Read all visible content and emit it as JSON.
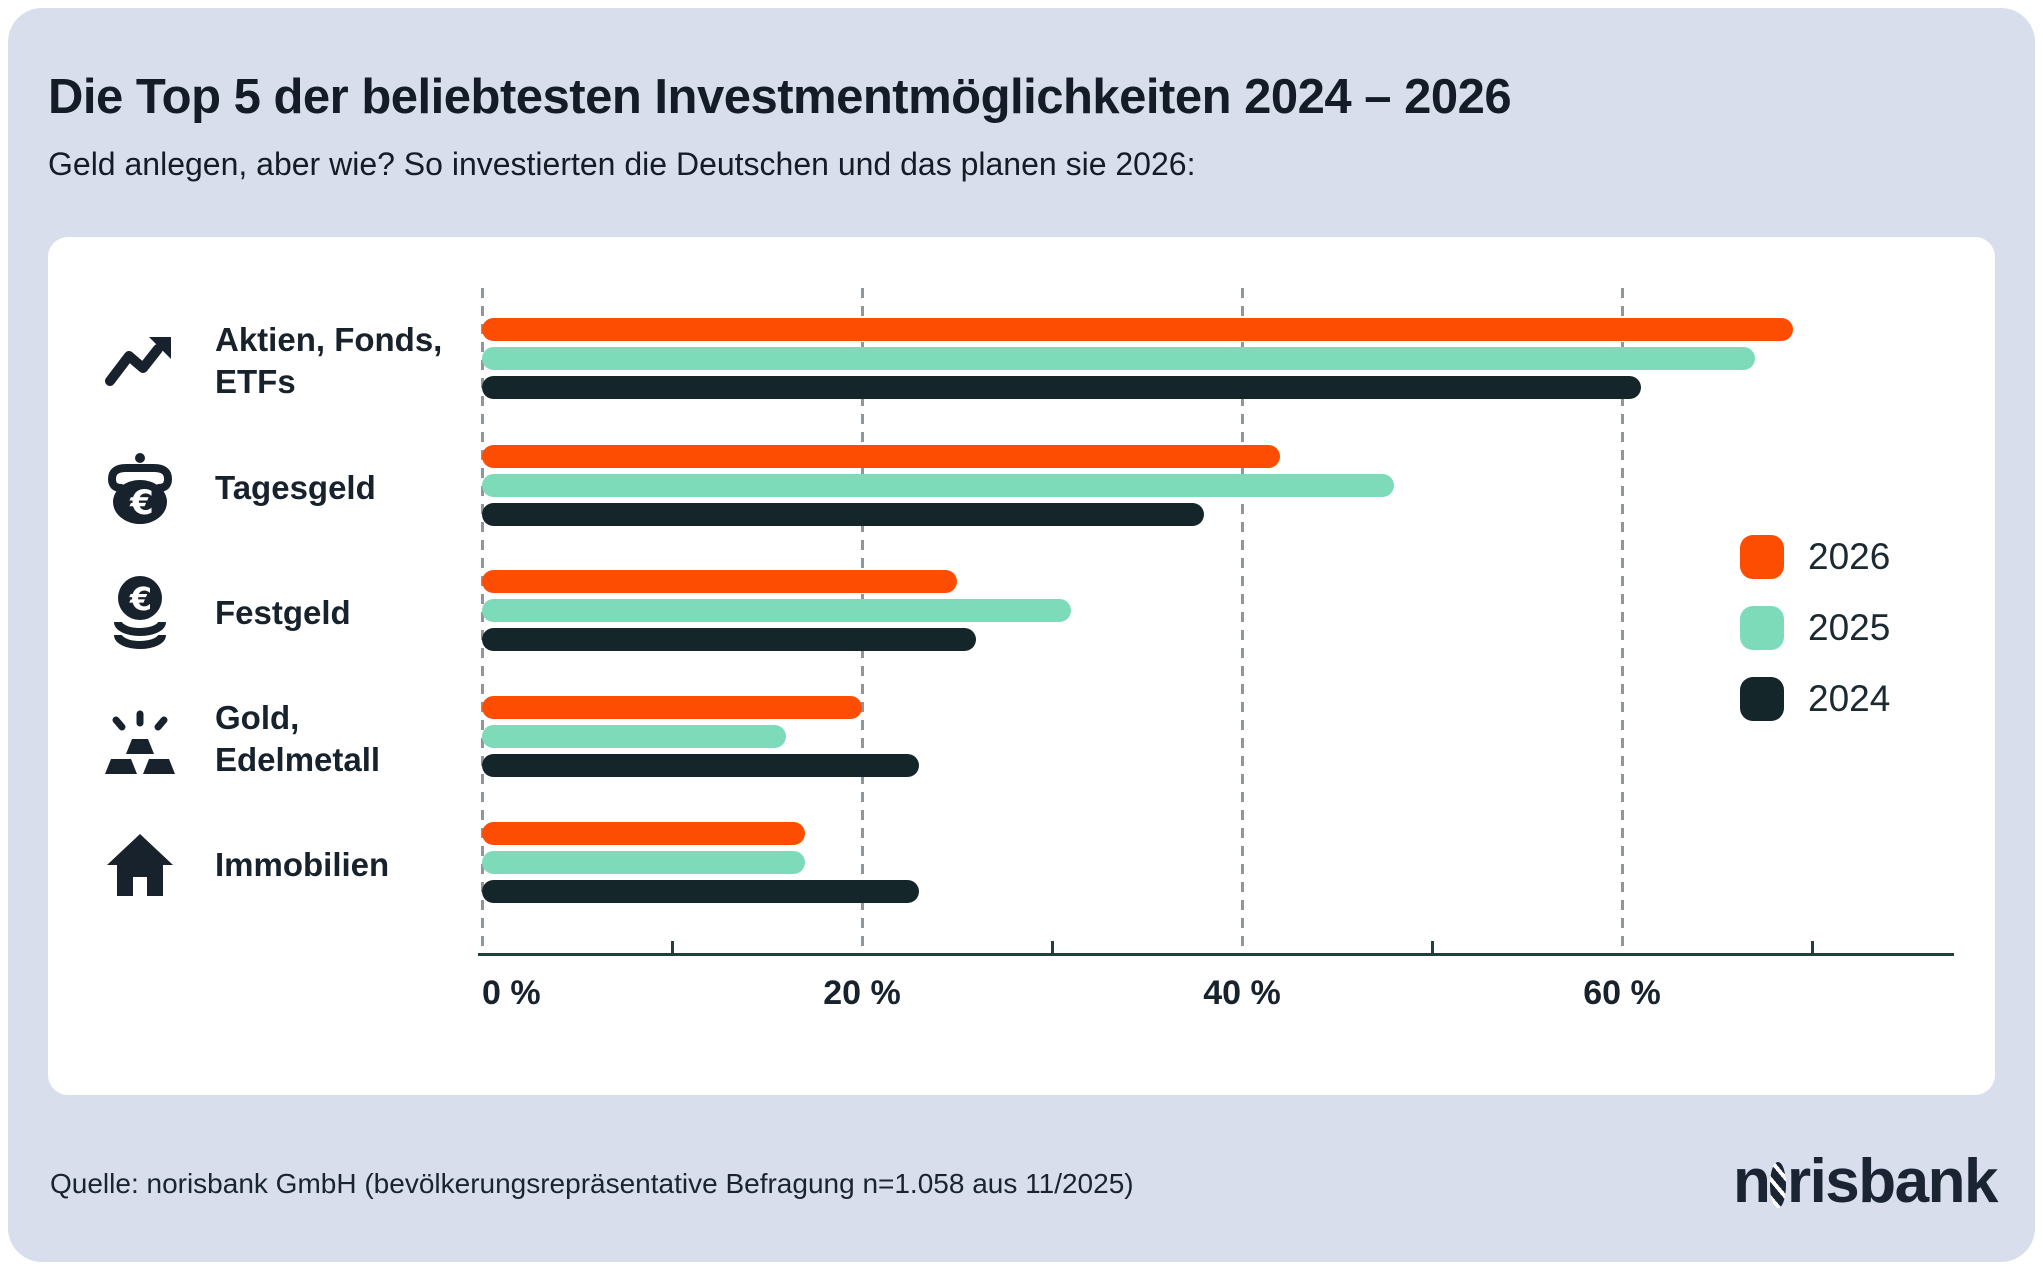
{
  "header": {
    "title": "Die Top 5 der beliebtesten Investmentmöglichkeiten 2024 – 2026",
    "subtitle": "Geld anlegen, aber wie? So investierten die Deutschen und das planen sie 2026:"
  },
  "rows": [
    {
      "icon": "trend-up-icon",
      "label_lines": [
        "Aktien, Fonds,",
        "ETFs"
      ]
    },
    {
      "icon": "purse-euro-icon",
      "label_lines": [
        "Tagesgeld"
      ]
    },
    {
      "icon": "coin-stack-icon",
      "label_lines": [
        "Festgeld"
      ]
    },
    {
      "icon": "gold-bars-icon",
      "label_lines": [
        "Gold,",
        "Edelmetall"
      ]
    },
    {
      "icon": "house-icon",
      "label_lines": [
        "Immobilien"
      ]
    }
  ],
  "chart_data": {
    "type": "bar",
    "orientation": "horizontal",
    "title": "Die Top 5 der beliebtesten Investmentmöglichkeiten 2024 – 2026",
    "categories": [
      "Aktien, Fonds, ETFs",
      "Tagesgeld",
      "Festgeld",
      "Gold, Edelmetall",
      "Immobilien"
    ],
    "series": [
      {
        "name": "2026",
        "color": "#FC4D03",
        "values": [
          69,
          42,
          25,
          20,
          17
        ]
      },
      {
        "name": "2025",
        "color": "#7EDBBA",
        "values": [
          67,
          48,
          31,
          16,
          17
        ]
      },
      {
        "name": "2024",
        "color": "#15262B",
        "values": [
          61,
          38,
          26,
          23,
          23
        ]
      }
    ],
    "value_unit": "%",
    "xlim": [
      0,
      77
    ],
    "grid": "dashed-vertical-major",
    "legend_position": "right"
  },
  "axis": {
    "major_ticks": [
      {
        "value": 0,
        "label": "0 %"
      },
      {
        "value": 20,
        "label": "20 %"
      },
      {
        "value": 40,
        "label": "40 %"
      },
      {
        "value": 60,
        "label": "60 %"
      }
    ],
    "minor_tick_values": [
      10,
      30,
      50,
      70
    ]
  },
  "legend": [
    {
      "label": "2026",
      "color": "#FC4D03"
    },
    {
      "label": "2025",
      "color": "#7EDBBA"
    },
    {
      "label": "2024",
      "color": "#15262B"
    }
  ],
  "colors": {
    "ink": "#18222C",
    "panel_background": "#D8DEEB",
    "card_background": "#FFFFFF",
    "axis_line": "#21403B",
    "gridline": "#8F969C",
    "accent_2026": "#FC4D03",
    "accent_2025": "#7EDBBA",
    "accent_2024": "#15262B"
  },
  "footer": {
    "source": "Quelle: norisbank GmbH (bevölkerungsrepräsentative Befragung n=1.058 aus 11/2025)",
    "logo_prefix": "n",
    "logo_suffix": "risbank",
    "logo_full": "norisbank"
  }
}
